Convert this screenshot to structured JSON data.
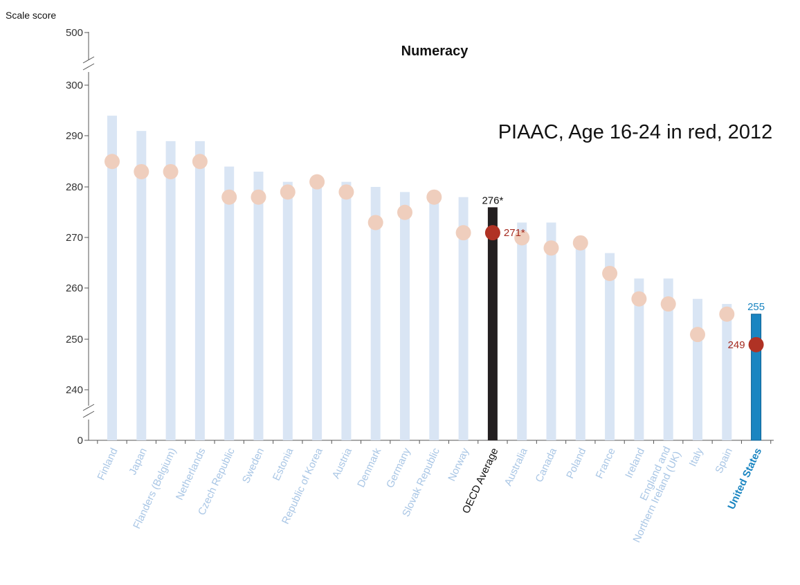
{
  "chart_data": {
    "type": "bar",
    "title": "Numeracy",
    "subtitle": "PIAAC, Age 16-24 in red, 2012",
    "ylabel": "Scale score",
    "y_ticks": [
      "500",
      "300",
      "290",
      "280",
      "270",
      "260",
      "250",
      "240",
      "0"
    ],
    "ylim": [
      235,
      301
    ],
    "axis_breaks": true,
    "categories": [
      "Finland",
      "Japan",
      "Flanders (Belgium)",
      "Netherlands",
      "Czech Republic",
      "Sweden",
      "Estonia",
      "Republic of Korea",
      "Austria",
      "Denmark",
      "Germany",
      "Slovak Republic",
      "Norway",
      "OECD Average",
      "Australia",
      "Canada",
      "Poland",
      "France",
      "Ireland",
      "England and Northern Ireland (UK)",
      "Italy",
      "Spain",
      "United States"
    ],
    "series": [
      {
        "values": [
          294,
          291,
          289,
          289,
          284,
          283,
          281,
          281,
          281,
          280,
          279,
          278,
          278,
          276,
          273,
          273,
          269,
          267,
          262,
          262,
          258,
          257,
          255
        ]
      },
      {
        "values": [
          285,
          283,
          283,
          285,
          278,
          278,
          279,
          281,
          279,
          273,
          275,
          278,
          271,
          271,
          270,
          268,
          269,
          263,
          258,
          257,
          251,
          255,
          249
        ]
      }
    ],
    "highlight_labels": {
      "oecd_bar": "276*",
      "oecd_dot": "271*",
      "us_bar": "255",
      "us_dot": "249"
    },
    "colors": {
      "bar": "#d9e5f4",
      "dot": "#efcebd",
      "oecd_bar": "#231f20",
      "us_bar": "#1a85c1",
      "highlight_dot": "#b03224",
      "category_label": "#a9c6e5",
      "us_label": "#1a85c1",
      "oecd_label": "#111111",
      "us_value": "#1a85c1",
      "highlight_value": "#a52a1f"
    }
  }
}
